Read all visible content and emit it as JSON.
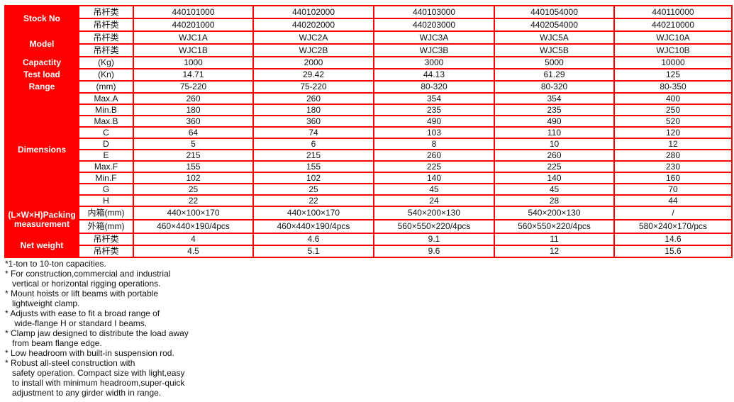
{
  "table": {
    "stock_label": "Stock No",
    "model_label": "Model",
    "capacity_label": "Capactity",
    "testload_label": "Test load",
    "range_label": "Range",
    "dimensions_label": "Dimensions",
    "packing_label": "(L×W×H)Packing measurement",
    "netweight_label": "Net weight",
    "rows": [
      {
        "sub": "吊杆类",
        "v": [
          "440101000",
          "440102000",
          "440103000",
          "4401054000",
          "440110000"
        ]
      },
      {
        "sub": "吊杆类",
        "v": [
          "440201000",
          "440202000",
          "440203000",
          "4402054000",
          "440210000"
        ]
      },
      {
        "sub": "吊杆类",
        "v": [
          "WJC1A",
          "WJC2A",
          "WJC3A",
          "WJC5A",
          "WJC10A"
        ]
      },
      {
        "sub": "吊杆类",
        "v": [
          "WJC1B",
          "WJC2B",
          "WJC3B",
          "WJC5B",
          "WJC10B"
        ]
      },
      {
        "sub": "(Kg)",
        "v": [
          "1000",
          "2000",
          "3000",
          "5000",
          "10000"
        ]
      },
      {
        "sub": "(Kn)",
        "v": [
          "14.71",
          "29.42",
          "44.13",
          "61.29",
          "125"
        ]
      },
      {
        "sub": "(mm)",
        "v": [
          "75-220",
          "75-220",
          "80-320",
          "80-320",
          "80-350"
        ]
      },
      {
        "sub": "Max.A",
        "v": [
          "260",
          "260",
          "354",
          "354",
          "400"
        ]
      },
      {
        "sub": "Min.B",
        "v": [
          "180",
          "180",
          "235",
          "235",
          "250"
        ]
      },
      {
        "sub": "Max.B",
        "v": [
          "360",
          "360",
          "490",
          "490",
          "520"
        ]
      },
      {
        "sub": "C",
        "v": [
          "64",
          "74",
          "103",
          "110",
          "120"
        ]
      },
      {
        "sub": "D",
        "v": [
          "5",
          "6",
          "8",
          "10",
          "12"
        ]
      },
      {
        "sub": "E",
        "v": [
          "215",
          "215",
          "260",
          "260",
          "280"
        ]
      },
      {
        "sub": "Max.F",
        "v": [
          "155",
          "155",
          "225",
          "225",
          "230"
        ]
      },
      {
        "sub": "Min.F",
        "v": [
          "102",
          "102",
          "140",
          "140",
          "160"
        ]
      },
      {
        "sub": "G",
        "v": [
          "25",
          "25",
          "45",
          "45",
          "70"
        ]
      },
      {
        "sub": "H",
        "v": [
          "22",
          "22",
          "24",
          "28",
          "44"
        ]
      },
      {
        "sub": "内箱(mm)",
        "v": [
          "440×100×170",
          "440×100×170",
          "540×200×130",
          "540×200×130",
          "/"
        ]
      },
      {
        "sub": "外箱(mm)",
        "v": [
          "460×440×190/4pcs",
          "460×440×190/4pcs",
          "560×550×220/4pcs",
          "560×550×220/4pcs",
          "580×240×170/pcs"
        ]
      },
      {
        "sub": "吊杆类",
        "v": [
          "4",
          "4.6",
          "9.1",
          "11",
          "14.6"
        ]
      },
      {
        "sub": "吊杆类",
        "v": [
          "4.5",
          "5.1",
          "9.6",
          "12",
          "15.6"
        ]
      }
    ]
  },
  "notes": [
    "*1-ton to 10-ton capacities.",
    "* For construction,commercial and industrial",
    "   vertical or horizontal rigging operations.",
    "* Mount hoists or lift beams with portable",
    "   lightweight clamp.",
    "* Adjusts with ease to fit a broad range of",
    "    wide-flange H or standard I beams.",
    "* Clamp jaw designed to distribute the load away",
    "   from beam flange edge.",
    "* Low headroom with built-in suspension rod.",
    "* Robust all-steel construction with",
    "   safety operation. Compact size with light,easy",
    "   to install with minimum headroom,super-quick",
    "   adjustment to any girder width in range."
  ]
}
